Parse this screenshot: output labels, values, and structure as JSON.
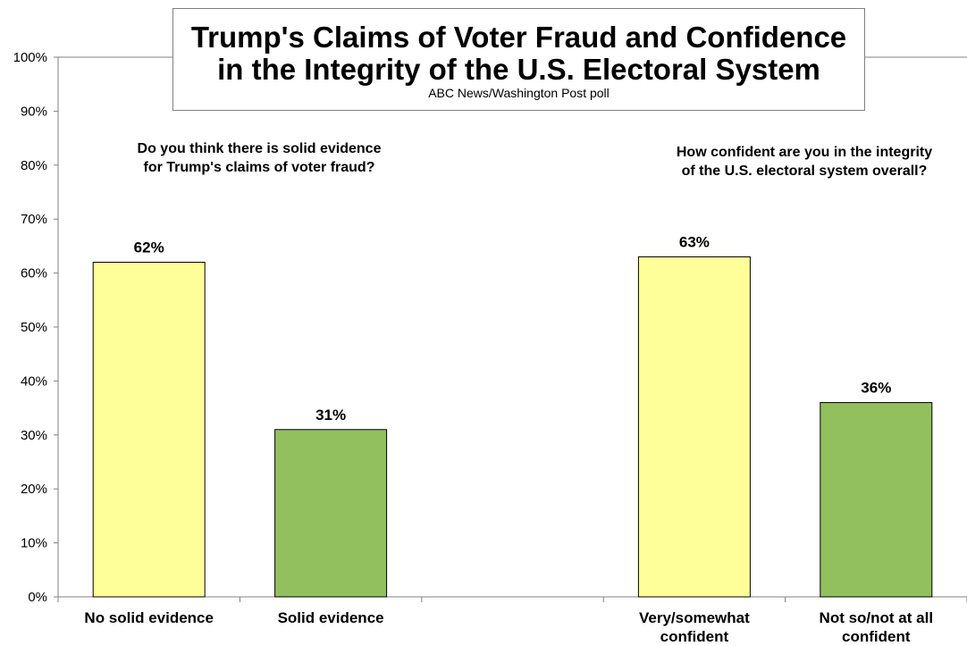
{
  "chart_data": {
    "type": "bar",
    "title_lines": [
      "Trump's Claims of Voter Fraud and Confidence",
      "in the Integrity of the U.S. Electoral System"
    ],
    "subtitle": "ABC News/Washington Post poll",
    "ylim": [
      0,
      100
    ],
    "y_ticks": [
      "0%",
      "10%",
      "20%",
      "30%",
      "40%",
      "50%",
      "60%",
      "70%",
      "80%",
      "90%",
      "100%"
    ],
    "grid": false,
    "questions": [
      {
        "lines": [
          "Do you think there is solid evidence",
          "for Trump's claims of voter fraud?"
        ]
      },
      {
        "lines": [
          "How confident are you in the integrity",
          "of the U.S. electoral system overall?"
        ]
      }
    ],
    "categories": [
      {
        "label_lines": [
          "No solid evidence"
        ],
        "value": 62,
        "value_label": "62%",
        "color": "#FFFF99"
      },
      {
        "label_lines": [
          "Solid evidence"
        ],
        "value": 31,
        "value_label": "31%",
        "color": "#92C05E"
      },
      {
        "label_lines": [
          ""
        ],
        "value": null,
        "value_label": "",
        "color": ""
      },
      {
        "label_lines": [
          "Very/somewhat",
          "confident"
        ],
        "value": 63,
        "value_label": "63%",
        "color": "#FFFF99"
      },
      {
        "label_lines": [
          "Not so/not at all",
          "confident"
        ],
        "value": 36,
        "value_label": "36%",
        "color": "#92C05E"
      }
    ]
  }
}
